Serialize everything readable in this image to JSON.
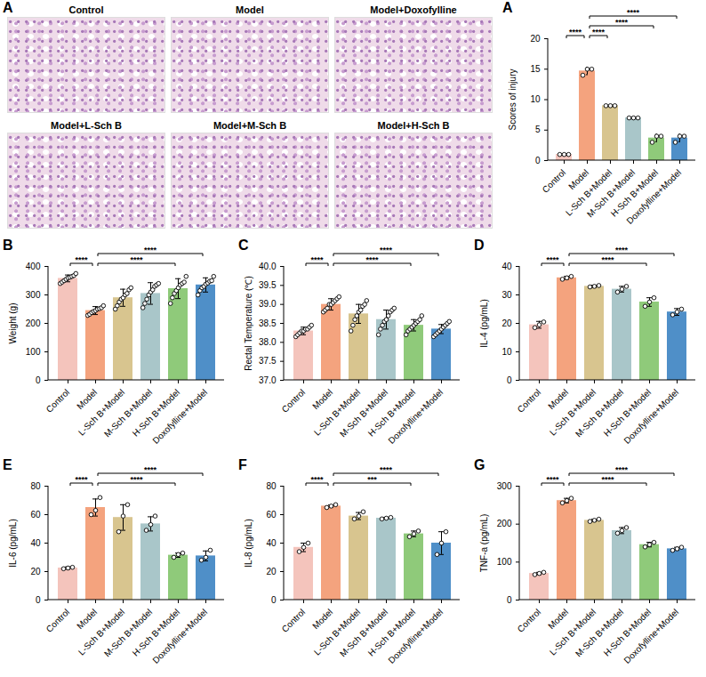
{
  "image_panels": {
    "panel": "A",
    "titles": [
      "Control",
      "Model",
      "Model+Doxofylline",
      "Model+L-Sch B",
      "Model+M-Sch B",
      "Model+H-Sch B"
    ]
  },
  "chart_data": [
    {
      "type": "bar",
      "panel": "A",
      "ylabel": "Scores of injury",
      "categories": [
        "Control",
        "Model",
        "L-Sch B+Model",
        "M-Sch B+Model",
        "H-Sch B+Model",
        "Doxofylline+Model"
      ],
      "colors": [
        "#f4c4bc",
        "#f4a37e",
        "#d8c58f",
        "#a9c6c9",
        "#8fca7a",
        "#4f8fc8"
      ],
      "values": [
        1,
        14.7,
        9,
        7,
        3.7,
        3.7
      ],
      "errors": [
        0,
        0.6,
        0,
        0,
        0.6,
        0.6
      ],
      "points": [
        [
          1,
          1,
          1
        ],
        [
          14,
          15,
          15
        ],
        [
          9,
          9,
          9
        ],
        [
          7,
          7,
          7
        ],
        [
          3,
          4,
          4
        ],
        [
          3,
          4,
          4
        ]
      ],
      "ylim": [
        0,
        20
      ],
      "yticks": [
        0,
        5,
        10,
        15,
        20
      ],
      "comparisons": [
        {
          "from": "Control",
          "to": "Model",
          "label": "****"
        },
        {
          "from": "Model",
          "to": "L-Sch B+Model",
          "label": "****"
        },
        {
          "from": "Model",
          "to": "H-Sch B+Model",
          "label": "****"
        },
        {
          "from": "Model",
          "to": "Doxofylline+Model",
          "label": "****"
        }
      ]
    },
    {
      "type": "bar",
      "panel": "B",
      "ylabel": "Weight (g)",
      "categories": [
        "Control",
        "Model",
        "L-Sch B+Model",
        "M-Sch B+Model",
        "H-Sch B+Model",
        "Doxofylline+Model"
      ],
      "colors": [
        "#f4c4bc",
        "#f4a37e",
        "#d8c58f",
        "#a9c6c9",
        "#8fca7a",
        "#4f8fc8"
      ],
      "values": [
        358,
        245,
        290,
        305,
        322,
        335
      ],
      "errors": [
        12,
        14,
        30,
        38,
        35,
        25
      ],
      "points": [
        [
          340,
          345,
          350,
          355,
          360,
          362,
          365,
          368,
          375
        ],
        [
          228,
          232,
          238,
          242,
          245,
          250,
          252,
          255,
          262
        ],
        [
          250,
          262,
          275,
          285,
          290,
          300,
          305,
          318,
          325
        ],
        [
          255,
          270,
          285,
          300,
          310,
          318,
          330,
          335,
          340
        ],
        [
          270,
          290,
          305,
          315,
          325,
          335,
          340,
          345,
          365
        ],
        [
          300,
          315,
          325,
          330,
          338,
          342,
          348,
          350,
          365
        ]
      ],
      "ylim": [
        0,
        400
      ],
      "yticks": [
        0,
        100,
        200,
        300,
        400
      ],
      "comparisons": [
        {
          "from": "Control",
          "to": "Model",
          "label": "****"
        },
        {
          "from": "Model",
          "to": "H-Sch B+Model",
          "label": "****"
        },
        {
          "from": "Model",
          "to": "Doxofylline+Model",
          "label": "****"
        }
      ]
    },
    {
      "type": "bar",
      "panel": "C",
      "ylabel": "Rectal Temperature (℃)",
      "categories": [
        "Control",
        "Model",
        "L-Sch B+Model",
        "M-Sch B+Model",
        "H-Sch B+Model",
        "Doxofylline+Model"
      ],
      "colors": [
        "#f4c4bc",
        "#f4a37e",
        "#d8c58f",
        "#a9c6c9",
        "#8fca7a",
        "#4f8fc8"
      ],
      "values": [
        38.3,
        39.0,
        38.75,
        38.6,
        38.45,
        38.35
      ],
      "errors": [
        0.1,
        0.15,
        0.25,
        0.25,
        0.15,
        0.12
      ],
      "points": [
        [
          38.15,
          38.2,
          38.25,
          38.3,
          38.3,
          38.35,
          38.35,
          38.4,
          38.45
        ],
        [
          38.8,
          38.85,
          38.9,
          39.0,
          39.0,
          39.05,
          39.1,
          39.15,
          39.2
        ],
        [
          38.3,
          38.45,
          38.6,
          38.7,
          38.8,
          38.85,
          38.95,
          39.0,
          39.1
        ],
        [
          38.2,
          38.35,
          38.45,
          38.55,
          38.6,
          38.7,
          38.8,
          38.85,
          38.9
        ],
        [
          38.2,
          38.3,
          38.35,
          38.4,
          38.45,
          38.5,
          38.55,
          38.6,
          38.7
        ],
        [
          38.15,
          38.2,
          38.25,
          38.3,
          38.35,
          38.4,
          38.45,
          38.5,
          38.55
        ]
      ],
      "ylim": [
        37,
        40
      ],
      "yticks": [
        {
          "value": 37,
          "label": "37.0"
        },
        {
          "value": 37.5,
          "label": "37.5"
        },
        {
          "value": 38,
          "label": "38.0"
        },
        {
          "value": 38.5,
          "label": "38.5"
        },
        {
          "value": 39,
          "label": "39.0"
        },
        {
          "value": 39.5,
          "label": "39.5"
        },
        {
          "value": 40,
          "label": "40.0"
        }
      ],
      "comparisons": [
        {
          "from": "Control",
          "to": "Model",
          "label": "****"
        },
        {
          "from": "Model",
          "to": "H-Sch B+Model",
          "label": "****"
        },
        {
          "from": "Model",
          "to": "Doxofylline+Model",
          "label": "****"
        }
      ]
    },
    {
      "type": "bar",
      "panel": "D",
      "ylabel": "IL-4 (pg/mL)",
      "categories": [
        "Control",
        "Model",
        "L-Sch B+Model",
        "M-Sch B+Model",
        "H-Sch B+Model",
        "Doxofylline+Model"
      ],
      "colors": [
        "#f4c4bc",
        "#f4a37e",
        "#d8c58f",
        "#a9c6c9",
        "#8fca7a",
        "#4f8fc8"
      ],
      "values": [
        19.5,
        36,
        33,
        32,
        27.5,
        24
      ],
      "errors": [
        1.2,
        0.5,
        0.4,
        1,
        1.5,
        1.2
      ],
      "points": [
        [
          18.5,
          19.5,
          20.5
        ],
        [
          35.5,
          36,
          36.5
        ],
        [
          32.8,
          33,
          33.3
        ],
        [
          31,
          32,
          33
        ],
        [
          26,
          27.5,
          29
        ],
        [
          23,
          24,
          25
        ]
      ],
      "ylim": [
        0,
        40
      ],
      "yticks": [
        0,
        10,
        20,
        30,
        40
      ],
      "comparisons": [
        {
          "from": "Control",
          "to": "Model",
          "label": "****"
        },
        {
          "from": "Model",
          "to": "H-Sch B+Model",
          "label": "****"
        },
        {
          "from": "Model",
          "to": "Doxofylline+Model",
          "label": "****"
        }
      ]
    },
    {
      "type": "bar",
      "panel": "E",
      "ylabel": "IL-6 (pg/mL)",
      "categories": [
        "Control",
        "Model",
        "L-Sch B+Model",
        "M-Sch B+Model",
        "H-Sch B+Model",
        "Doxofylline+Model"
      ],
      "colors": [
        "#f4c4bc",
        "#f4a37e",
        "#d8c58f",
        "#a9c6c9",
        "#8fca7a",
        "#4f8fc8"
      ],
      "values": [
        22.5,
        65,
        58,
        53.5,
        31.5,
        31
      ],
      "errors": [
        0.8,
        6,
        9,
        5,
        1.5,
        3.5
      ],
      "points": [
        [
          22,
          22.5,
          23
        ],
        [
          60,
          63,
          72
        ],
        [
          48,
          59,
          67
        ],
        [
          49,
          53,
          59
        ],
        [
          30,
          32,
          33
        ],
        [
          28,
          30,
          35
        ]
      ],
      "ylim": [
        0,
        80
      ],
      "yticks": [
        0,
        20,
        40,
        60,
        80
      ],
      "comparisons": [
        {
          "from": "Control",
          "to": "Model",
          "label": "****"
        },
        {
          "from": "Model",
          "to": "H-Sch B+Model",
          "label": "****"
        },
        {
          "from": "Model",
          "to": "Doxofylline+Model",
          "label": "****"
        }
      ]
    },
    {
      "type": "bar",
      "panel": "F",
      "ylabel": "IL-8 (pg/mL)",
      "categories": [
        "Control",
        "Model",
        "L-Sch B+Model",
        "M-Sch B+Model",
        "H-Sch B+Model",
        "Doxofylline+Model"
      ],
      "colors": [
        "#f4c4bc",
        "#f4a37e",
        "#d8c58f",
        "#a9c6c9",
        "#8fca7a",
        "#4f8fc8"
      ],
      "values": [
        37,
        66,
        59,
        57.5,
        46.5,
        40
      ],
      "errors": [
        3,
        0.8,
        2.5,
        0.5,
        2,
        8
      ],
      "points": [
        [
          34,
          37,
          40
        ],
        [
          65,
          66,
          67
        ],
        [
          57,
          59,
          62
        ],
        [
          57,
          57.5,
          58
        ],
        [
          44.5,
          46.5,
          48.5
        ],
        [
          32,
          40,
          48
        ]
      ],
      "ylim": [
        0,
        80
      ],
      "yticks": [
        0,
        20,
        40,
        60,
        80
      ],
      "comparisons": [
        {
          "from": "Control",
          "to": "Model",
          "label": "****"
        },
        {
          "from": "Model",
          "to": "H-Sch B+Model",
          "label": "***"
        },
        {
          "from": "Model",
          "to": "Doxofylline+Model",
          "label": "****"
        }
      ]
    },
    {
      "type": "bar",
      "panel": "G",
      "ylabel": "TNF-a (pg/mL)",
      "categories": [
        "Control",
        "Model",
        "L-Sch B+Model",
        "M-Sch B+Model",
        "H-Sch B+Model",
        "Doxofylline+Model"
      ],
      "colors": [
        "#f4c4bc",
        "#f4a37e",
        "#d8c58f",
        "#a9c6c9",
        "#8fca7a",
        "#4f8fc8"
      ],
      "values": [
        70,
        262,
        210,
        183,
        146,
        135
      ],
      "errors": [
        3,
        6,
        3,
        8,
        6,
        4
      ],
      "points": [
        [
          67,
          70,
          73
        ],
        [
          256,
          262,
          268
        ],
        [
          207,
          210,
          213
        ],
        [
          176,
          183,
          191
        ],
        [
          140,
          146,
          152
        ],
        [
          131,
          135,
          139
        ]
      ],
      "ylim": [
        0,
        300
      ],
      "yticks": [
        0,
        100,
        200,
        300
      ],
      "comparisons": [
        {
          "from": "Control",
          "to": "Model",
          "label": "****"
        },
        {
          "from": "Model",
          "to": "H-Sch B+Model",
          "label": "****"
        },
        {
          "from": "Model",
          "to": "Doxofylline+Model",
          "label": "****"
        }
      ]
    }
  ]
}
